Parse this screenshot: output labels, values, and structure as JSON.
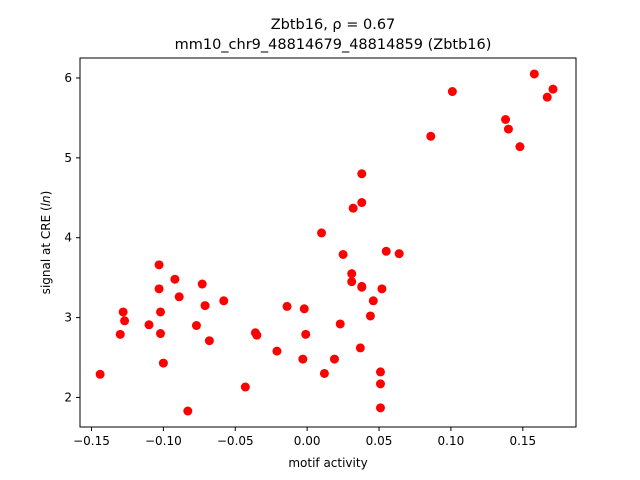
{
  "chart_data": {
    "type": "scatter",
    "title_line1": "Zbtb16, ρ = 0.67",
    "title_line2": "mm10_chr9_48814679_48814859 (Zbtb16)",
    "xlabel": "motif activity",
    "ylabel_prefix": "signal at CRE (",
    "ylabel_italic": "ln",
    "ylabel_suffix": ")",
    "xlim": [
      -0.158,
      0.187
    ],
    "ylim": [
      1.63,
      6.25
    ],
    "xticks": [
      -0.15,
      -0.1,
      -0.05,
      0.0,
      0.05,
      0.1,
      0.15
    ],
    "xtick_labels": [
      "−0.15",
      "−0.10",
      "−0.05",
      "0.00",
      "0.05",
      "0.10",
      "0.15"
    ],
    "yticks": [
      2,
      3,
      4,
      5,
      6
    ],
    "ytick_labels": [
      "2",
      "3",
      "4",
      "5",
      "6"
    ],
    "point_color": "#ff0000",
    "grid": false,
    "points": [
      {
        "x": -0.144,
        "y": 2.29
      },
      {
        "x": -0.13,
        "y": 2.79
      },
      {
        "x": -0.128,
        "y": 3.07
      },
      {
        "x": -0.127,
        "y": 2.96
      },
      {
        "x": -0.11,
        "y": 2.91
      },
      {
        "x": -0.103,
        "y": 3.66
      },
      {
        "x": -0.103,
        "y": 3.36
      },
      {
        "x": -0.102,
        "y": 3.07
      },
      {
        "x": -0.102,
        "y": 2.8
      },
      {
        "x": -0.1,
        "y": 2.43
      },
      {
        "x": -0.092,
        "y": 3.48
      },
      {
        "x": -0.089,
        "y": 3.26
      },
      {
        "x": -0.083,
        "y": 1.83
      },
      {
        "x": -0.077,
        "y": 2.9
      },
      {
        "x": -0.073,
        "y": 3.42
      },
      {
        "x": -0.071,
        "y": 3.15
      },
      {
        "x": -0.068,
        "y": 2.71
      },
      {
        "x": -0.058,
        "y": 3.21
      },
      {
        "x": -0.043,
        "y": 2.13
      },
      {
        "x": -0.036,
        "y": 2.81
      },
      {
        "x": -0.035,
        "y": 2.78
      },
      {
        "x": -0.021,
        "y": 2.58
      },
      {
        "x": -0.014,
        "y": 3.14
      },
      {
        "x": -0.003,
        "y": 2.48
      },
      {
        "x": -0.002,
        "y": 3.11
      },
      {
        "x": -0.001,
        "y": 2.79
      },
      {
        "x": 0.01,
        "y": 4.06
      },
      {
        "x": 0.012,
        "y": 2.3
      },
      {
        "x": 0.019,
        "y": 2.48
      },
      {
        "x": 0.023,
        "y": 2.92
      },
      {
        "x": 0.025,
        "y": 3.79
      },
      {
        "x": 0.031,
        "y": 3.45
      },
      {
        "x": 0.031,
        "y": 3.55
      },
      {
        "x": 0.032,
        "y": 4.37
      },
      {
        "x": 0.037,
        "y": 2.62
      },
      {
        "x": 0.038,
        "y": 3.39
      },
      {
        "x": 0.038,
        "y": 3.38
      },
      {
        "x": 0.038,
        "y": 4.44
      },
      {
        "x": 0.038,
        "y": 4.8
      },
      {
        "x": 0.044,
        "y": 3.02
      },
      {
        "x": 0.046,
        "y": 3.21
      },
      {
        "x": 0.051,
        "y": 1.87
      },
      {
        "x": 0.051,
        "y": 2.17
      },
      {
        "x": 0.051,
        "y": 2.32
      },
      {
        "x": 0.052,
        "y": 3.36
      },
      {
        "x": 0.055,
        "y": 3.83
      },
      {
        "x": 0.064,
        "y": 3.8
      },
      {
        "x": 0.086,
        "y": 5.27
      },
      {
        "x": 0.101,
        "y": 5.83
      },
      {
        "x": 0.138,
        "y": 5.48
      },
      {
        "x": 0.14,
        "y": 5.36
      },
      {
        "x": 0.148,
        "y": 5.14
      },
      {
        "x": 0.158,
        "y": 6.05
      },
      {
        "x": 0.167,
        "y": 5.76
      },
      {
        "x": 0.171,
        "y": 5.86
      }
    ]
  }
}
